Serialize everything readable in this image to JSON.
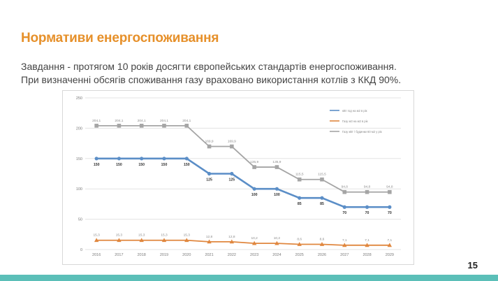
{
  "slide": {
    "title": "Нормативи енергоспоживання",
    "subtitle_line1": "Завдання - протягом 10 років досягти європейських стандартів енергоспоживання.",
    "subtitle_line2": "При визначенні обсягів споживання газу враховано використання котлів з ККД 90%.",
    "page_number": "15"
  },
  "colors": {
    "title": "#e6902a",
    "series_heat": "#5b8ec7",
    "series_gas": "#e0873f",
    "series_total": "#a5a5a5",
    "footer_band": "#5bbfb8"
  },
  "chart_data": {
    "type": "line",
    "title": "",
    "xlabel": "",
    "ylabel": "",
    "ylim": [
      0,
      250
    ],
    "yticks": [
      0,
      50,
      100,
      150,
      200,
      250
    ],
    "grid": true,
    "legend_position": "top-right",
    "categories": [
      "2016",
      "2017",
      "2018",
      "2019",
      "2020",
      "2021",
      "2022",
      "2023",
      "2024",
      "2025",
      "2026",
      "2027",
      "2028",
      "2029"
    ],
    "series": [
      {
        "name": "кВт год на м2 в рік",
        "marker": "circle",
        "color": "#5b8ec7",
        "values": [
          150,
          150,
          150,
          150,
          150,
          125,
          125,
          100,
          100,
          85,
          85,
          70,
          70,
          70
        ],
        "labels": [
          "150",
          "150",
          "150",
          "150",
          "150",
          "125",
          "125",
          "100",
          "100",
          "85",
          "85",
          "70",
          "70",
          "70"
        ],
        "label_position": "below"
      },
      {
        "name": "Газу м3 на м2 в рік",
        "marker": "triangle",
        "color": "#e0873f",
        "values": [
          15.3,
          15.3,
          15.3,
          15.3,
          15.3,
          12.8,
          12.8,
          10.2,
          10.2,
          8.6,
          8.6,
          7.1,
          7.1,
          7.1
        ],
        "labels": [
          "15,3",
          "15,3",
          "15,3",
          "15,3",
          "15,3",
          "12,8",
          "12,8",
          "10,2",
          "10,2",
          "8,6",
          "8,6",
          "7,1",
          "7,1",
          "7,1"
        ],
        "label_position": "above"
      },
      {
        "name": "Газу кВт / будинки 60 м2 у рік",
        "marker": "square",
        "color": "#a5a5a5",
        "values": [
          204.1,
          204.1,
          204.1,
          204.1,
          204.1,
          169.9,
          169.9,
          135.9,
          135.9,
          115.5,
          115.5,
          94.8,
          94.8,
          94.8
        ],
        "labels": [
          "204,1",
          "204,1",
          "204,1",
          "204,1",
          "204,1",
          "169,9",
          "169,9",
          "135,9",
          "135,9",
          "115,5",
          "115,5",
          "94,8",
          "94,8",
          "94,8"
        ],
        "label_position": "above"
      }
    ]
  }
}
